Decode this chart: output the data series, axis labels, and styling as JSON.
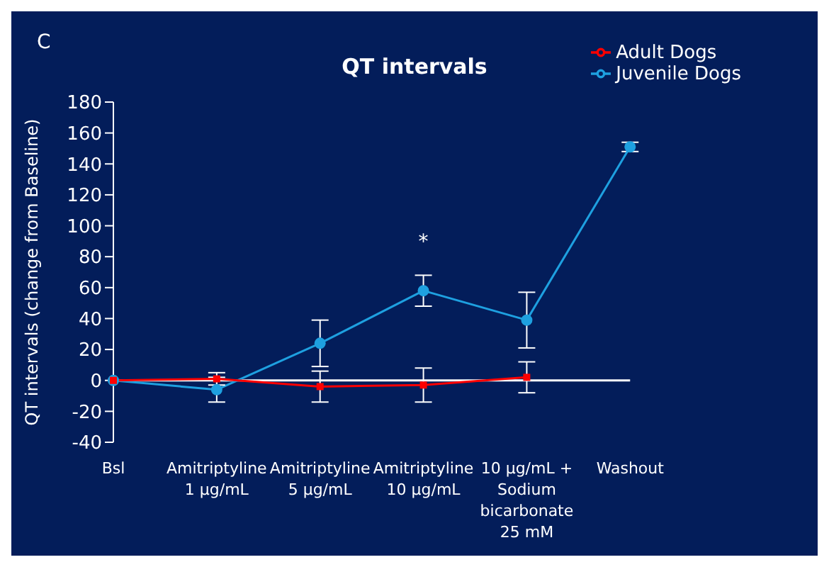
{
  "chart_data": {
    "type": "line",
    "title": "QT intervals",
    "ylabel": "QT intervals (change from Baseline)",
    "categories": [
      "Bsl",
      "Amitriptyline\n1 µg/mL",
      "Amitriptyline\n5 µg/mL",
      "Amitriptyline\n10 µg/mL",
      "10 µg/mL +\nSodium\nbicarbonate\n25 mM",
      "Washout"
    ],
    "series": [
      {
        "name": "Juvenile Dogs",
        "color": "#1ea0e0",
        "marker": "circle",
        "values": [
          0,
          -6,
          24,
          58,
          39,
          151
        ],
        "errors": [
          null,
          8,
          15,
          10,
          18,
          3
        ]
      },
      {
        "name": "Adult Dogs",
        "color": "#ff0000",
        "marker": "square",
        "values": [
          0,
          1,
          -4,
          -3,
          2,
          null
        ],
        "errors": [
          null,
          4,
          10,
          11,
          10,
          null
        ]
      }
    ],
    "ylim": [
      -40,
      180
    ],
    "yticks": [
      -40,
      -20,
      0,
      20,
      40,
      60,
      80,
      100,
      120,
      140,
      160,
      180
    ],
    "grid": false,
    "legend": "top right",
    "ref_lines": [
      {
        "axis": "y",
        "value": 0,
        "color": "#ffffff"
      }
    ],
    "annotations": [
      "C",
      {
        "text": "*",
        "x": "Amitriptyline\n10 µg/mL",
        "y": 58
      }
    ]
  }
}
